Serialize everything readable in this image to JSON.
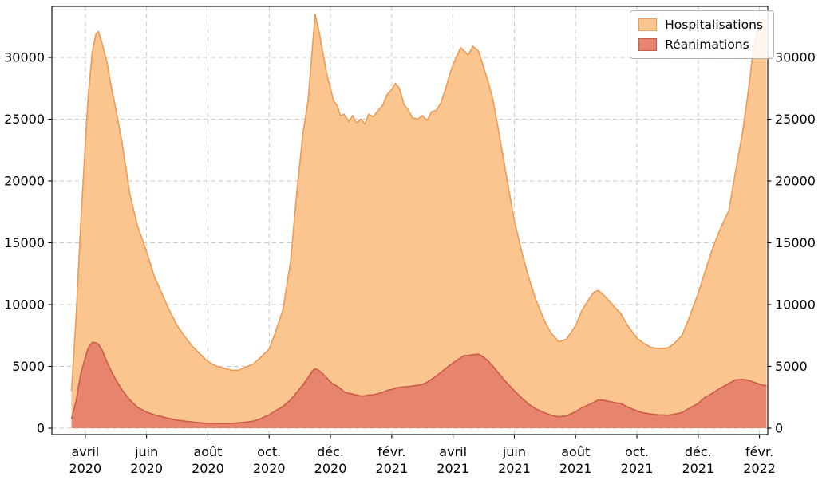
{
  "chart_data": {
    "type": "area",
    "title": "",
    "xlabel": "",
    "ylabel": "",
    "x_unit": "months since 2020-01-01 (e.g. 3.0 = 1 avril 2020)",
    "grid": true,
    "grid_style": "dashed",
    "legend_position": "top-right",
    "y_axis_mirrored": true,
    "xlim": [
      1.91,
      25.27
    ],
    "ylim": [
      -516,
      34130
    ],
    "y_ticks": [
      0,
      5000,
      10000,
      15000,
      20000,
      25000,
      30000
    ],
    "x_ticks": [
      {
        "pos": 3,
        "month": "avril",
        "year": "2020"
      },
      {
        "pos": 5,
        "month": "juin",
        "year": "2020"
      },
      {
        "pos": 7,
        "month": "août",
        "year": "2020"
      },
      {
        "pos": 9,
        "month": "oct.",
        "year": "2020"
      },
      {
        "pos": 11,
        "month": "déc.",
        "year": "2020"
      },
      {
        "pos": 13,
        "month": "févr.",
        "year": "2021"
      },
      {
        "pos": 15,
        "month": "avril",
        "year": "2021"
      },
      {
        "pos": 17,
        "month": "juin",
        "year": "2021"
      },
      {
        "pos": 19,
        "month": "août",
        "year": "2021"
      },
      {
        "pos": 21,
        "month": "oct.",
        "year": "2021"
      },
      {
        "pos": 23,
        "month": "déc.",
        "year": "2021"
      },
      {
        "pos": 25,
        "month": "févr.",
        "year": "2022"
      }
    ],
    "series": [
      {
        "name": "Hospitalisations",
        "column": 1,
        "fill": "#FAC58F",
        "edge": "#EC9A55"
      },
      {
        "name": "Réanimations",
        "column": 2,
        "fill": "#E6846E",
        "edge": "#CD5B46"
      }
    ],
    "colors": {
      "grid": "#c9c9c9",
      "spine": "#000000",
      "background": "#ffffff"
    },
    "columns": [
      "month_index",
      "hospitalisations",
      "reanimations"
    ],
    "points": [
      [
        2.55,
        3000,
        770
      ],
      [
        2.7,
        9000,
        2200
      ],
      [
        2.85,
        16500,
        4400
      ],
      [
        3.0,
        23000,
        5700
      ],
      [
        3.1,
        27000,
        6500
      ],
      [
        3.23,
        30500,
        6950
      ],
      [
        3.35,
        31900,
        6900
      ],
      [
        3.43,
        32100,
        6800
      ],
      [
        3.55,
        31100,
        6300
      ],
      [
        3.7,
        29700,
        5400
      ],
      [
        3.85,
        27600,
        4600
      ],
      [
        4.0,
        25800,
        3900
      ],
      [
        4.2,
        23100,
        3100
      ],
      [
        4.45,
        19000,
        2300
      ],
      [
        4.7,
        16400,
        1700
      ],
      [
        5.0,
        14300,
        1300
      ],
      [
        5.25,
        12300,
        1090
      ],
      [
        5.5,
        10900,
        930
      ],
      [
        5.75,
        9500,
        780
      ],
      [
        6.0,
        8300,
        650
      ],
      [
        6.25,
        7400,
        570
      ],
      [
        6.5,
        6600,
        500
      ],
      [
        6.75,
        6000,
        430
      ],
      [
        7.0,
        5400,
        390
      ],
      [
        7.25,
        5050,
        380
      ],
      [
        7.5,
        4860,
        375
      ],
      [
        7.75,
        4700,
        380
      ],
      [
        8.0,
        4690,
        430
      ],
      [
        8.25,
        4950,
        490
      ],
      [
        8.5,
        5230,
        575
      ],
      [
        8.75,
        5800,
        800
      ],
      [
        9.0,
        6400,
        1080
      ],
      [
        9.2,
        7700,
        1400
      ],
      [
        9.45,
        9600,
        1750
      ],
      [
        9.7,
        13500,
        2300
      ],
      [
        9.9,
        19000,
        2900
      ],
      [
        10.1,
        23800,
        3500
      ],
      [
        10.27,
        26500,
        4090
      ],
      [
        10.4,
        30400,
        4600
      ],
      [
        10.5,
        33500,
        4820
      ],
      [
        10.62,
        32200,
        4680
      ],
      [
        10.73,
        30700,
        4450
      ],
      [
        10.87,
        28800,
        4100
      ],
      [
        11.0,
        27500,
        3750
      ],
      [
        11.1,
        26500,
        3550
      ],
      [
        11.22,
        26100,
        3400
      ],
      [
        11.33,
        25300,
        3200
      ],
      [
        11.45,
        25400,
        2930
      ],
      [
        11.6,
        24800,
        2820
      ],
      [
        11.72,
        25300,
        2760
      ],
      [
        11.85,
        24700,
        2680
      ],
      [
        12.0,
        25000,
        2610
      ],
      [
        12.12,
        24600,
        2620
      ],
      [
        12.25,
        25400,
        2690
      ],
      [
        12.4,
        25200,
        2710
      ],
      [
        12.55,
        25700,
        2790
      ],
      [
        12.7,
        26100,
        2900
      ],
      [
        12.85,
        27000,
        3060
      ],
      [
        13.0,
        27400,
        3130
      ],
      [
        13.12,
        27900,
        3250
      ],
      [
        13.25,
        27500,
        3300
      ],
      [
        13.4,
        26200,
        3340
      ],
      [
        13.55,
        25700,
        3380
      ],
      [
        13.68,
        25100,
        3410
      ],
      [
        13.85,
        25000,
        3470
      ],
      [
        14.0,
        25300,
        3540
      ],
      [
        14.15,
        24900,
        3710
      ],
      [
        14.3,
        25600,
        3960
      ],
      [
        14.45,
        25700,
        4220
      ],
      [
        14.6,
        26300,
        4510
      ],
      [
        14.75,
        27400,
        4800
      ],
      [
        14.9,
        28700,
        5110
      ],
      [
        15.0,
        29400,
        5270
      ],
      [
        15.12,
        30100,
        5480
      ],
      [
        15.25,
        30800,
        5700
      ],
      [
        15.37,
        30500,
        5880
      ],
      [
        15.5,
        30200,
        5890
      ],
      [
        15.65,
        30900,
        5950
      ],
      [
        15.83,
        30500,
        5990
      ],
      [
        16.0,
        29200,
        5750
      ],
      [
        16.15,
        28000,
        5420
      ],
      [
        16.3,
        26600,
        5020
      ],
      [
        16.5,
        23900,
        4420
      ],
      [
        16.7,
        21000,
        3820
      ],
      [
        17.0,
        16800,
        3030
      ],
      [
        17.25,
        14200,
        2420
      ],
      [
        17.47,
        12200,
        1940
      ],
      [
        17.7,
        10400,
        1570
      ],
      [
        18.0,
        8600,
        1230
      ],
      [
        18.2,
        7700,
        1060
      ],
      [
        18.45,
        7000,
        915
      ],
      [
        18.7,
        7200,
        1000
      ],
      [
        19.0,
        8300,
        1330
      ],
      [
        19.2,
        9500,
        1650
      ],
      [
        19.45,
        10500,
        1910
      ],
      [
        19.6,
        11000,
        2110
      ],
      [
        19.74,
        11150,
        2290
      ],
      [
        19.9,
        10800,
        2260
      ],
      [
        20.1,
        10300,
        2160
      ],
      [
        20.3,
        9700,
        2060
      ],
      [
        20.47,
        9300,
        2000
      ],
      [
        20.7,
        8300,
        1710
      ],
      [
        21.0,
        7300,
        1400
      ],
      [
        21.2,
        6900,
        1250
      ],
      [
        21.45,
        6550,
        1140
      ],
      [
        21.7,
        6450,
        1080
      ],
      [
        22.0,
        6490,
        1050
      ],
      [
        22.2,
        6800,
        1120
      ],
      [
        22.47,
        7500,
        1260
      ],
      [
        22.7,
        8900,
        1600
      ],
      [
        23.0,
        10900,
        2000
      ],
      [
        23.2,
        12500,
        2460
      ],
      [
        23.45,
        14400,
        2800
      ],
      [
        23.7,
        16000,
        3210
      ],
      [
        24.0,
        17600,
        3620
      ],
      [
        24.2,
        20500,
        3900
      ],
      [
        24.45,
        24000,
        3950
      ],
      [
        24.6,
        26600,
        3900
      ],
      [
        24.77,
        30000,
        3760
      ],
      [
        24.9,
        31800,
        3650
      ],
      [
        25.0,
        32600,
        3560
      ],
      [
        25.1,
        33100,
        3490
      ],
      [
        25.23,
        32900,
        3430
      ]
    ]
  }
}
